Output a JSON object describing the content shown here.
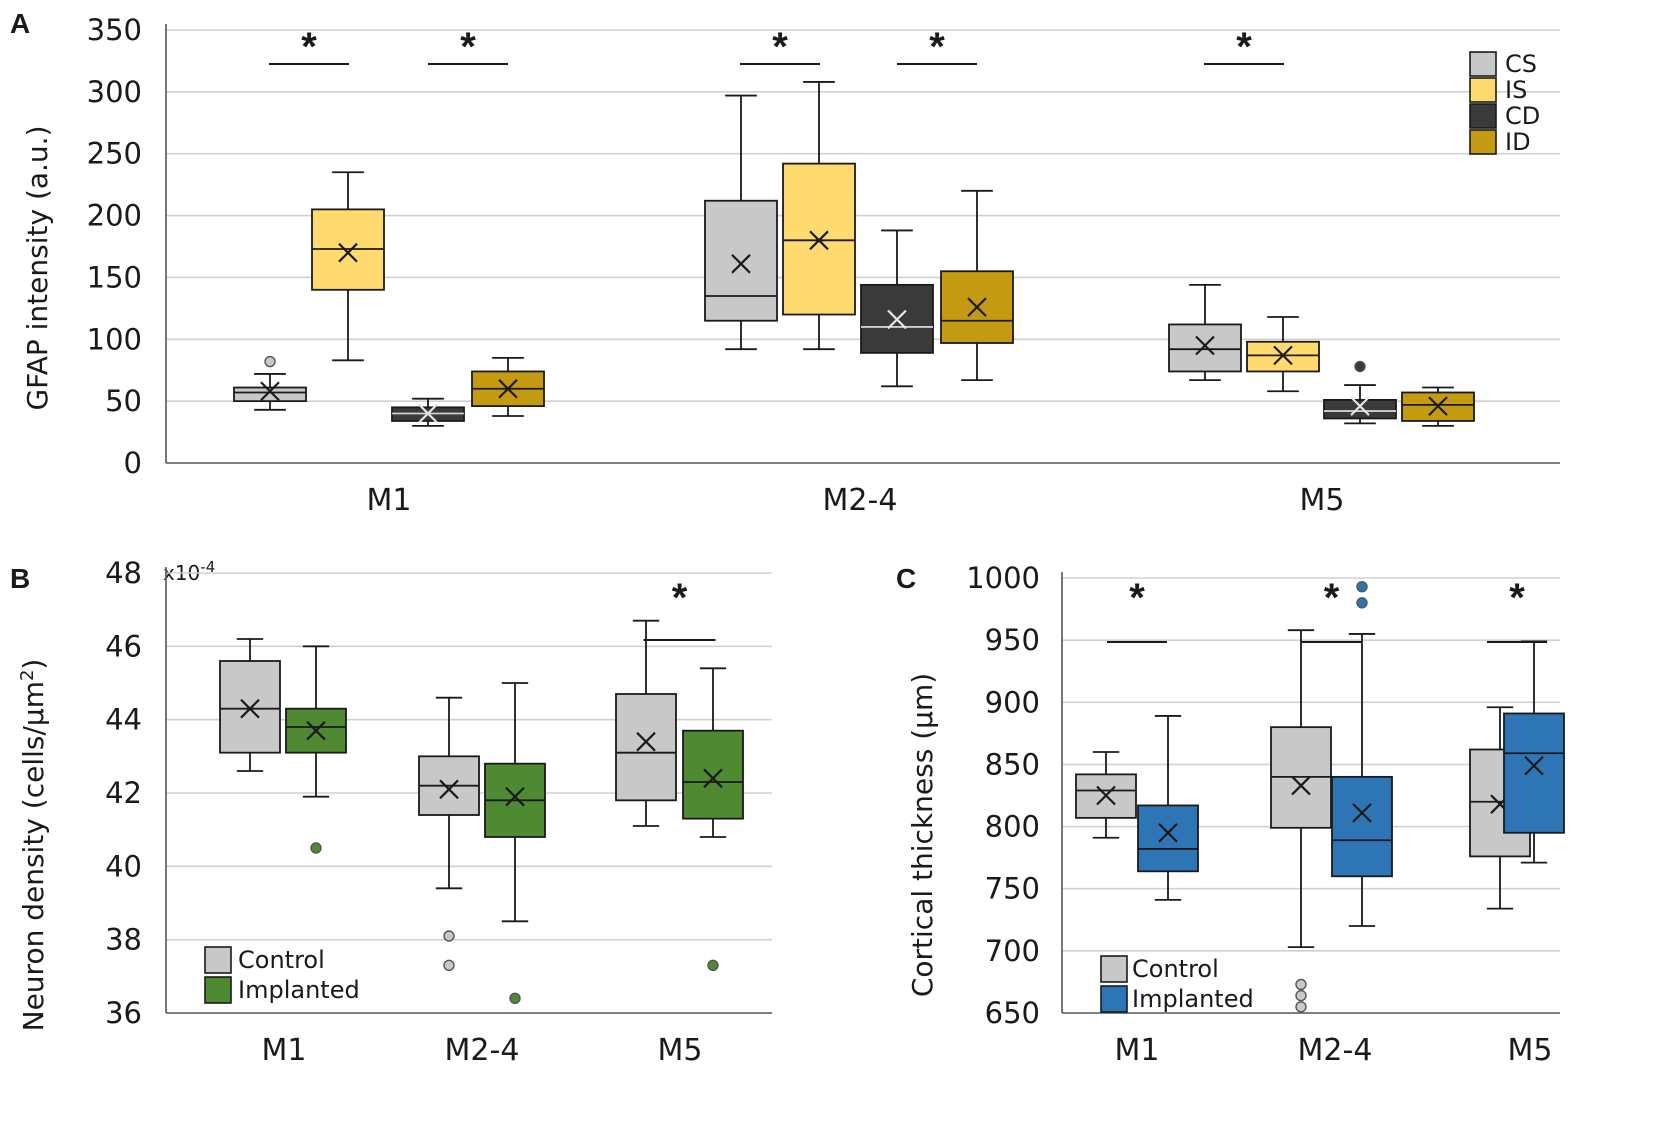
{
  "chart_data": [
    {
      "panel": "A",
      "type": "box",
      "ylabel": "GFAP intensity (a.u.)",
      "ylim": [
        0,
        350
      ],
      "yticks": [
        0,
        50,
        100,
        150,
        200,
        250,
        300,
        350
      ],
      "categories": [
        "M1",
        "M2-4",
        "M5"
      ],
      "legend": {
        "position": "top-right",
        "entries": [
          {
            "name": "CS",
            "color": "#c8c8c8"
          },
          {
            "name": "IS",
            "color": "#ffda6e"
          },
          {
            "name": "CD",
            "color": "#3a3a3a"
          },
          {
            "name": "ID",
            "color": "#c49a10"
          }
        ]
      },
      "boxes": [
        {
          "category": "M1",
          "series": "CS",
          "min": 43,
          "q1": 50,
          "median": 57,
          "q3": 61,
          "max": 72,
          "mean": 58,
          "outliers": [
            82
          ]
        },
        {
          "category": "M1",
          "series": "IS",
          "min": 83,
          "q1": 140,
          "median": 173,
          "q3": 205,
          "max": 235,
          "mean": 170,
          "outliers": []
        },
        {
          "category": "M1",
          "series": "CD",
          "min": 30,
          "q1": 34,
          "median": 40,
          "q3": 45,
          "max": 52,
          "mean": 40,
          "outliers": []
        },
        {
          "category": "M1",
          "series": "ID",
          "min": 38,
          "q1": 46,
          "median": 60,
          "q3": 74,
          "max": 85,
          "mean": 60,
          "outliers": []
        },
        {
          "category": "M2-4",
          "series": "CS",
          "min": 92,
          "q1": 115,
          "median": 135,
          "q3": 212,
          "max": 297,
          "mean": 161,
          "outliers": []
        },
        {
          "category": "M2-4",
          "series": "IS",
          "min": 92,
          "q1": 120,
          "median": 180,
          "q3": 242,
          "max": 308,
          "mean": 180,
          "outliers": []
        },
        {
          "category": "M2-4",
          "series": "CD",
          "min": 62,
          "q1": 89,
          "median": 110,
          "q3": 144,
          "max": 188,
          "mean": 116,
          "outliers": []
        },
        {
          "category": "M2-4",
          "series": "ID",
          "min": 67,
          "q1": 97,
          "median": 115,
          "q3": 155,
          "max": 220,
          "mean": 126,
          "outliers": []
        },
        {
          "category": "M5",
          "series": "CS",
          "min": 67,
          "q1": 74,
          "median": 92,
          "q3": 112,
          "max": 144,
          "mean": 95,
          "outliers": []
        },
        {
          "category": "M5",
          "series": "IS",
          "min": 58,
          "q1": 74,
          "median": 87,
          "q3": 98,
          "max": 118,
          "mean": 87,
          "outliers": []
        },
        {
          "category": "M5",
          "series": "CD",
          "min": 32,
          "q1": 36,
          "median": 42,
          "q3": 51,
          "max": 63,
          "mean": 46,
          "outliers": [
            78
          ]
        },
        {
          "category": "M5",
          "series": "ID",
          "min": 30,
          "q1": 34,
          "median": 47,
          "q3": 57,
          "max": 61,
          "mean": 46,
          "outliers": []
        }
      ],
      "significance": [
        {
          "label": "*",
          "between": [
            0,
            1
          ]
        },
        {
          "label": "*",
          "between": [
            2,
            3
          ]
        },
        {
          "label": "*",
          "between": [
            4,
            5
          ]
        },
        {
          "label": "*",
          "between": [
            6,
            7
          ]
        },
        {
          "label": "*",
          "between": [
            8,
            9
          ]
        }
      ]
    },
    {
      "panel": "B",
      "type": "box",
      "ylabel": "Neuron density (cells/µm²)",
      "ylabel_main": "Neuron density (cells/µm",
      "ylabel_sup": "2",
      "ylabel_end": ")",
      "multiplier_base": "x10",
      "multiplier_exp": "-4",
      "ylim": [
        36,
        48
      ],
      "yticks": [
        36,
        38,
        40,
        42,
        44,
        46,
        48
      ],
      "categories": [
        "M1",
        "M2-4",
        "M5"
      ],
      "legend": {
        "position": "bottom-left",
        "entries": [
          {
            "name": "Control",
            "color": "#c8c8c8"
          },
          {
            "name": "Implanted",
            "color": "#4f8a33"
          }
        ]
      },
      "boxes": [
        {
          "category": "M1",
          "series": "Control",
          "min": 42.6,
          "q1": 43.1,
          "median": 44.3,
          "q3": 45.6,
          "max": 46.2,
          "mean": 44.3,
          "outliers": []
        },
        {
          "category": "M1",
          "series": "Implanted",
          "min": 41.9,
          "q1": 43.1,
          "median": 43.8,
          "q3": 44.3,
          "max": 46.0,
          "mean": 43.7,
          "outliers": [
            40.5
          ]
        },
        {
          "category": "M2-4",
          "series": "Control",
          "min": 39.4,
          "q1": 41.4,
          "median": 42.2,
          "q3": 43.0,
          "max": 44.6,
          "mean": 42.1,
          "outliers": [
            38.1,
            37.3
          ]
        },
        {
          "category": "M2-4",
          "series": "Implanted",
          "min": 38.5,
          "q1": 40.8,
          "median": 41.8,
          "q3": 42.8,
          "max": 45.0,
          "mean": 41.9,
          "outliers": [
            36.4
          ]
        },
        {
          "category": "M5",
          "series": "Control",
          "min": 41.1,
          "q1": 41.8,
          "median": 43.1,
          "q3": 44.7,
          "max": 46.7,
          "mean": 43.4,
          "outliers": []
        },
        {
          "category": "M5",
          "series": "Implanted",
          "min": 40.8,
          "q1": 41.3,
          "median": 42.3,
          "q3": 43.7,
          "max": 45.4,
          "mean": 42.4,
          "outliers": [
            37.3
          ]
        }
      ],
      "significance": [
        {
          "label": "*",
          "between": [
            4,
            5
          ]
        }
      ]
    },
    {
      "panel": "C",
      "type": "box",
      "ylabel": "Cortical thickness (µm)",
      "ylim": [
        650,
        1000
      ],
      "yticks": [
        650,
        700,
        750,
        800,
        850,
        900,
        950,
        1000
      ],
      "categories": [
        "M1",
        "M2-4",
        "M5"
      ],
      "legend": {
        "position": "bottom-left",
        "entries": [
          {
            "name": "Control",
            "color": "#c8c8c8"
          },
          {
            "name": "Implanted",
            "color": "#2e75b6"
          }
        ]
      },
      "boxes": [
        {
          "category": "M1",
          "series": "Control",
          "min": 791,
          "q1": 807,
          "median": 829,
          "q3": 842,
          "max": 860,
          "mean": 825,
          "outliers": []
        },
        {
          "category": "M1",
          "series": "Implanted",
          "min": 741,
          "q1": 764,
          "median": 782,
          "q3": 817,
          "max": 889,
          "mean": 795,
          "outliers": []
        },
        {
          "category": "M2-4",
          "series": "Control",
          "min": 703,
          "q1": 799,
          "median": 840,
          "q3": 880,
          "max": 958,
          "mean": 833,
          "outliers": [
            655,
            664,
            673
          ]
        },
        {
          "category": "M2-4",
          "series": "Implanted",
          "min": 720,
          "q1": 760,
          "median": 789,
          "q3": 840,
          "max": 955,
          "mean": 811,
          "outliers": [
            980,
            993
          ]
        },
        {
          "category": "M5",
          "series": "Control",
          "min": 734,
          "q1": 776,
          "median": 820,
          "q3": 862,
          "max": 896,
          "mean": 818,
          "outliers": []
        },
        {
          "category": "M5",
          "series": "Implanted",
          "min": 771,
          "q1": 795,
          "median": 859,
          "q3": 891,
          "max": 949,
          "mean": 849,
          "outliers": []
        }
      ],
      "significance": [
        {
          "label": "*",
          "between": [
            0,
            1
          ]
        },
        {
          "label": "*",
          "between": [
            2,
            3
          ]
        },
        {
          "label": "*",
          "between": [
            4,
            5
          ]
        }
      ]
    }
  ]
}
